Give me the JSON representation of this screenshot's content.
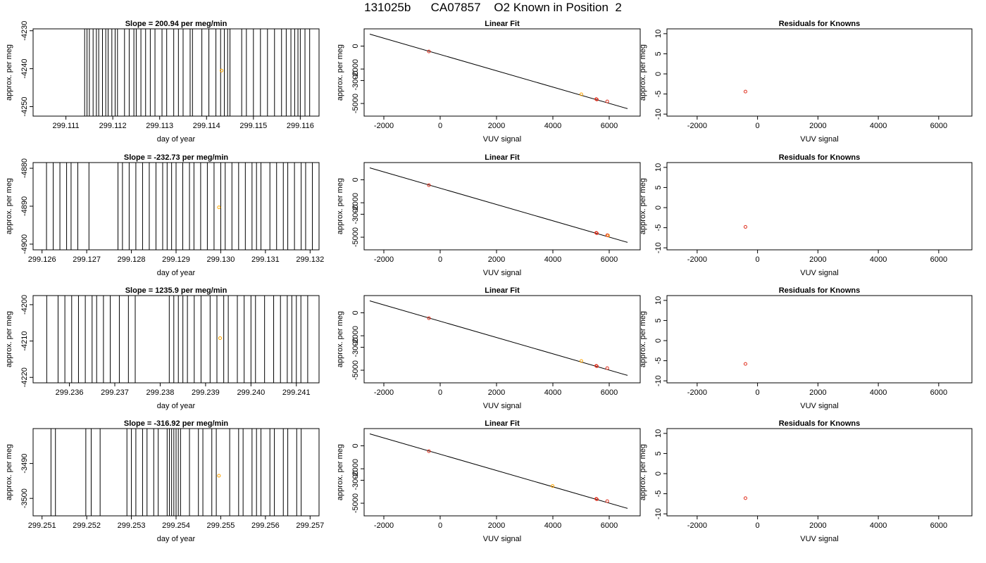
{
  "page_title": "131025b      CA07857    O2 Known in Position  2",
  "colors": {
    "line": "#000000",
    "known_point": "#e0301e",
    "flagged_point": "#ffa500",
    "frame": "#000000"
  },
  "chart_data": [
    {
      "type": "line",
      "title": "Slope =  200.94  per meg/min",
      "xlabel": "day of year",
      "ylabel": "approx. per meg",
      "xlim": [
        299.1103,
        299.1164
      ],
      "ylim": [
        -4252.5,
        -4229.5
      ],
      "xticks": [
        "299.111",
        "299.112",
        "299.113",
        "299.114",
        "299.115",
        "299.116"
      ],
      "xtick_values": [
        299.111,
        299.112,
        299.113,
        299.114,
        299.115,
        299.116
      ],
      "yticks": [
        "-4250",
        "-4240",
        "-4230"
      ],
      "ytick_values": [
        -4250,
        -4240,
        -4230
      ],
      "trace_x": [
        299.1114,
        299.11145,
        299.1115,
        299.11158,
        299.11165,
        299.1117,
        299.11178,
        299.11185,
        299.1119,
        299.11198,
        299.11205,
        299.1121,
        299.11225,
        299.11235,
        299.11245,
        299.1125,
        299.1126,
        299.1127,
        299.1128,
        299.1129,
        299.11305,
        299.11315,
        299.1133,
        299.1134,
        299.1135,
        299.11365,
        299.1137,
        299.1139,
        299.11405,
        299.1142,
        299.1143,
        299.11438,
        299.11445,
        299.1145,
        299.11475,
        299.11485,
        299.115,
        299.11515,
        299.1153,
        299.11545,
        299.1156,
        299.1157,
        299.1158,
        299.11588,
        299.11595,
        299.116,
        299.1161,
        299.1162
      ],
      "points": [
        {
          "x": 299.11432,
          "y": -4240.5,
          "kind": "flagged"
        }
      ]
    },
    {
      "type": "scatter",
      "title": "Linear Fit",
      "xlabel": "VUV signal",
      "ylabel": "approx. per meg",
      "xlim": [
        -2700,
        7100
      ],
      "ylim": [
        -6100,
        1500
      ],
      "xticks": [
        "-2000",
        "0",
        "2000",
        "4000",
        "6000"
      ],
      "xtick_values": [
        -2000,
        0,
        2000,
        4000,
        6000
      ],
      "yticks": [
        "-5000",
        "-3000",
        "-2000",
        "0"
      ],
      "ytick_values": [
        -5000,
        -3000,
        -2000,
        0
      ],
      "fit_line": {
        "x": [
          -2500,
          6650
        ],
        "y": [
          1040,
          -5450
        ]
      },
      "points": [
        {
          "x": -400,
          "y": -470,
          "kind": "known"
        },
        {
          "x": 5010,
          "y": -4200,
          "kind": "flagged"
        },
        {
          "x": 5540,
          "y": -4620,
          "kind": "known"
        },
        {
          "x": 5560,
          "y": -4650,
          "kind": "known"
        },
        {
          "x": 5930,
          "y": -4820,
          "kind": "known"
        }
      ]
    },
    {
      "type": "scatter",
      "title": "Residuals for Knowns",
      "xlabel": "VUV signal",
      "ylabel": "approx. per meg",
      "xlim": [
        -3000,
        7100
      ],
      "ylim": [
        -10.5,
        11.2
      ],
      "xticks": [
        "-2000",
        "0",
        "2000",
        "4000",
        "6000"
      ],
      "xtick_values": [
        -2000,
        0,
        2000,
        4000,
        6000
      ],
      "yticks": [
        "-10",
        "-5",
        "0",
        "5",
        "10"
      ],
      "ytick_values": [
        -10,
        -5,
        0,
        5,
        10
      ],
      "points": [
        {
          "x": -400,
          "y": -4.4,
          "kind": "known"
        }
      ]
    },
    {
      "type": "line",
      "title": "Slope =  -232.73  per meg/min",
      "xlabel": "day of year",
      "ylabel": "approx. per meg",
      "xlim": [
        299.1258,
        299.1322
      ],
      "ylim": [
        -4901.5,
        -4878.5
      ],
      "xticks": [
        "299.126",
        "299.127",
        "299.128",
        "299.129",
        "299.130",
        "299.131",
        "299.132"
      ],
      "xtick_values": [
        299.126,
        299.127,
        299.128,
        299.129,
        299.13,
        299.131,
        299.132
      ],
      "yticks": [
        "-4900",
        "-4890",
        "-4880"
      ],
      "ytick_values": [
        -4900,
        -4890,
        -4880
      ],
      "trace_x": [
        299.1261,
        299.12625,
        299.1264,
        299.12655,
        299.12665,
        299.1268,
        299.12705,
        299.1277,
        299.1278,
        299.12795,
        299.1281,
        299.12825,
        299.1284,
        299.12855,
        299.1287,
        299.1288,
        299.1289,
        299.129,
        299.12915,
        299.1293,
        299.1294,
        299.12955,
        299.1297,
        299.12985,
        299.13,
        299.1301,
        299.13025,
        299.1304,
        299.13055,
        299.1307,
        299.1308,
        299.1309,
        299.1311,
        299.13125,
        299.1314,
        299.1315,
        299.13165,
        299.1318,
        299.1319,
        299.13205
      ],
      "points": [
        {
          "x": 299.12996,
          "y": -4890.3,
          "kind": "flagged"
        }
      ]
    },
    {
      "type": "scatter",
      "title": "Linear Fit",
      "xlabel": "VUV signal",
      "ylabel": "approx. per meg",
      "xlim": [
        -2700,
        7100
      ],
      "ylim": [
        -6100,
        1500
      ],
      "xticks": [
        "-2000",
        "0",
        "2000",
        "4000",
        "6000"
      ],
      "xtick_values": [
        -2000,
        0,
        2000,
        4000,
        6000
      ],
      "yticks": [
        "-5000",
        "-3000",
        "-2000",
        "0"
      ],
      "ytick_values": [
        -5000,
        -3000,
        -2000,
        0
      ],
      "fit_line": {
        "x": [
          -2500,
          6650
        ],
        "y": [
          1040,
          -5450
        ]
      },
      "points": [
        {
          "x": -400,
          "y": -470,
          "kind": "known"
        },
        {
          "x": 5540,
          "y": -4620,
          "kind": "known"
        },
        {
          "x": 5560,
          "y": -4650,
          "kind": "known"
        },
        {
          "x": 5960,
          "y": -4850,
          "kind": "flagged"
        },
        {
          "x": 5930,
          "y": -4830,
          "kind": "known"
        }
      ]
    },
    {
      "type": "scatter",
      "title": "Residuals for Knowns",
      "xlabel": "VUV signal",
      "ylabel": "approx. per meg",
      "xlim": [
        -3000,
        7100
      ],
      "ylim": [
        -10.5,
        11.2
      ],
      "xticks": [
        "-2000",
        "0",
        "2000",
        "4000",
        "6000"
      ],
      "xtick_values": [
        -2000,
        0,
        2000,
        4000,
        6000
      ],
      "yticks": [
        "-10",
        "-5",
        "0",
        "5",
        "10"
      ],
      "ytick_values": [
        -10,
        -5,
        0,
        5,
        10
      ],
      "points": [
        {
          "x": -400,
          "y": -4.8,
          "kind": "known"
        }
      ]
    },
    {
      "type": "line",
      "title": "Slope =  1235.9  per meg/min",
      "xlabel": "day of year",
      "ylabel": "approx. per meg",
      "xlim": [
        299.2352,
        299.2415
      ],
      "ylim": [
        -4221.5,
        -4197.5
      ],
      "xticks": [
        "299.236",
        "299.237",
        "299.238",
        "299.239",
        "299.240",
        "299.241"
      ],
      "xtick_values": [
        299.236,
        299.237,
        299.238,
        299.239,
        299.24,
        299.241
      ],
      "yticks": [
        "-4220",
        "-4210",
        "-4200"
      ],
      "ytick_values": [
        -4220,
        -4210,
        -4200
      ],
      "trace_x": [
        299.2355,
        299.23575,
        299.2359,
        299.23605,
        299.2362,
        299.23635,
        299.2365,
        299.2366,
        299.23675,
        299.2369,
        299.2371,
        299.2373,
        299.23745,
        299.2382,
        299.2383,
        299.2384,
        299.2385,
        299.2386,
        299.23875,
        299.2389,
        299.2391,
        299.23925,
        299.2394,
        299.2395,
        299.2397,
        299.23985,
        299.24,
        299.2401,
        299.2403,
        299.2405,
        299.24065,
        299.2408,
        299.2409,
        299.241,
        299.2411,
        299.24125
      ],
      "points": [
        {
          "x": 299.23932,
          "y": -4209.2,
          "kind": "flagged"
        }
      ]
    },
    {
      "type": "scatter",
      "title": "Linear Fit",
      "xlabel": "VUV signal",
      "ylabel": "approx. per meg",
      "xlim": [
        -2700,
        7100
      ],
      "ylim": [
        -6100,
        1500
      ],
      "xticks": [
        "-2000",
        "0",
        "2000",
        "4000",
        "6000"
      ],
      "xtick_values": [
        -2000,
        0,
        2000,
        4000,
        6000
      ],
      "yticks": [
        "-5000",
        "-3000",
        "-2000",
        "0"
      ],
      "ytick_values": [
        -5000,
        -3000,
        -2000,
        0
      ],
      "fit_line": {
        "x": [
          -2500,
          6650
        ],
        "y": [
          1040,
          -5450
        ]
      },
      "points": [
        {
          "x": -400,
          "y": -470,
          "kind": "known"
        },
        {
          "x": 5010,
          "y": -4200,
          "kind": "flagged"
        },
        {
          "x": 5540,
          "y": -4620,
          "kind": "known"
        },
        {
          "x": 5560,
          "y": -4650,
          "kind": "known"
        },
        {
          "x": 5930,
          "y": -4820,
          "kind": "known"
        }
      ]
    },
    {
      "type": "scatter",
      "title": "Residuals for Knowns",
      "xlabel": "VUV signal",
      "ylabel": "approx. per meg",
      "xlim": [
        -3000,
        7100
      ],
      "ylim": [
        -10.5,
        11.2
      ],
      "xticks": [
        "-2000",
        "0",
        "2000",
        "4000",
        "6000"
      ],
      "xtick_values": [
        -2000,
        0,
        2000,
        4000,
        6000
      ],
      "yticks": [
        "-10",
        "-5",
        "0",
        "5",
        "10"
      ],
      "ytick_values": [
        -10,
        -5,
        0,
        5,
        10
      ],
      "points": [
        {
          "x": -400,
          "y": -5.8,
          "kind": "known"
        }
      ]
    },
    {
      "type": "line",
      "title": "Slope =  -316.92  per meg/min",
      "xlabel": "day of year",
      "ylabel": "approx. per meg",
      "xlim": [
        299.2508,
        299.2572
      ],
      "ylim": [
        -3505,
        -3480
      ],
      "xticks": [
        "299.251",
        "299.252",
        "299.253",
        "299.254",
        "299.255",
        "299.256",
        "299.257"
      ],
      "xtick_values": [
        299.251,
        299.252,
        299.253,
        299.254,
        299.255,
        299.256,
        299.257
      ],
      "yticks": [
        "-3500",
        "-3490"
      ],
      "ytick_values": [
        -3500,
        -3490
      ],
      "trace_x": [
        299.2512,
        299.2513,
        299.25198,
        299.2521,
        299.2523,
        299.2529,
        299.253,
        299.2531,
        299.25325,
        299.25335,
        299.2535,
        299.2536,
        299.2538,
        299.25385,
        299.2539,
        299.25395,
        299.254,
        299.25405,
        299.2541,
        299.2543,
        299.2545,
        299.2546,
        299.2548,
        299.2549,
        299.2552,
        299.2554,
        299.2555,
        299.2557,
        299.2558,
        299.2559,
        299.2561,
        299.2562,
        299.2564,
        299.2565,
        299.2567,
        299.2568
      ],
      "points": [
        {
          "x": 299.25496,
          "y": -3493.5,
          "kind": "flagged"
        }
      ]
    },
    {
      "type": "scatter",
      "title": "Linear Fit",
      "xlabel": "VUV signal",
      "ylabel": "approx. per meg",
      "xlim": [
        -2700,
        7100
      ],
      "ylim": [
        -6100,
        1500
      ],
      "xticks": [
        "-2000",
        "0",
        "2000",
        "4000",
        "6000"
      ],
      "xtick_values": [
        -2000,
        0,
        2000,
        4000,
        6000
      ],
      "yticks": [
        "-5000",
        "-3000",
        "-2000",
        "0"
      ],
      "ytick_values": [
        -5000,
        -3000,
        -2000,
        0
      ],
      "fit_line": {
        "x": [
          -2500,
          6650
        ],
        "y": [
          1040,
          -5450
        ]
      },
      "points": [
        {
          "x": -400,
          "y": -470,
          "kind": "known"
        },
        {
          "x": 3990,
          "y": -3500,
          "kind": "flagged"
        },
        {
          "x": 5540,
          "y": -4620,
          "kind": "known"
        },
        {
          "x": 5560,
          "y": -4650,
          "kind": "known"
        },
        {
          "x": 5930,
          "y": -4820,
          "kind": "known"
        }
      ]
    },
    {
      "type": "scatter",
      "title": "Residuals for Knowns",
      "xlabel": "VUV signal",
      "ylabel": "approx. per meg",
      "xlim": [
        -3000,
        7100
      ],
      "ylim": [
        -10.5,
        11.2
      ],
      "xticks": [
        "-2000",
        "0",
        "2000",
        "4000",
        "6000"
      ],
      "xtick_values": [
        -2000,
        0,
        2000,
        4000,
        6000
      ],
      "yticks": [
        "-10",
        "-5",
        "0",
        "5",
        "10"
      ],
      "ytick_values": [
        -10,
        -5,
        0,
        5,
        10
      ],
      "points": [
        {
          "x": -400,
          "y": -6.1,
          "kind": "known"
        }
      ]
    }
  ]
}
